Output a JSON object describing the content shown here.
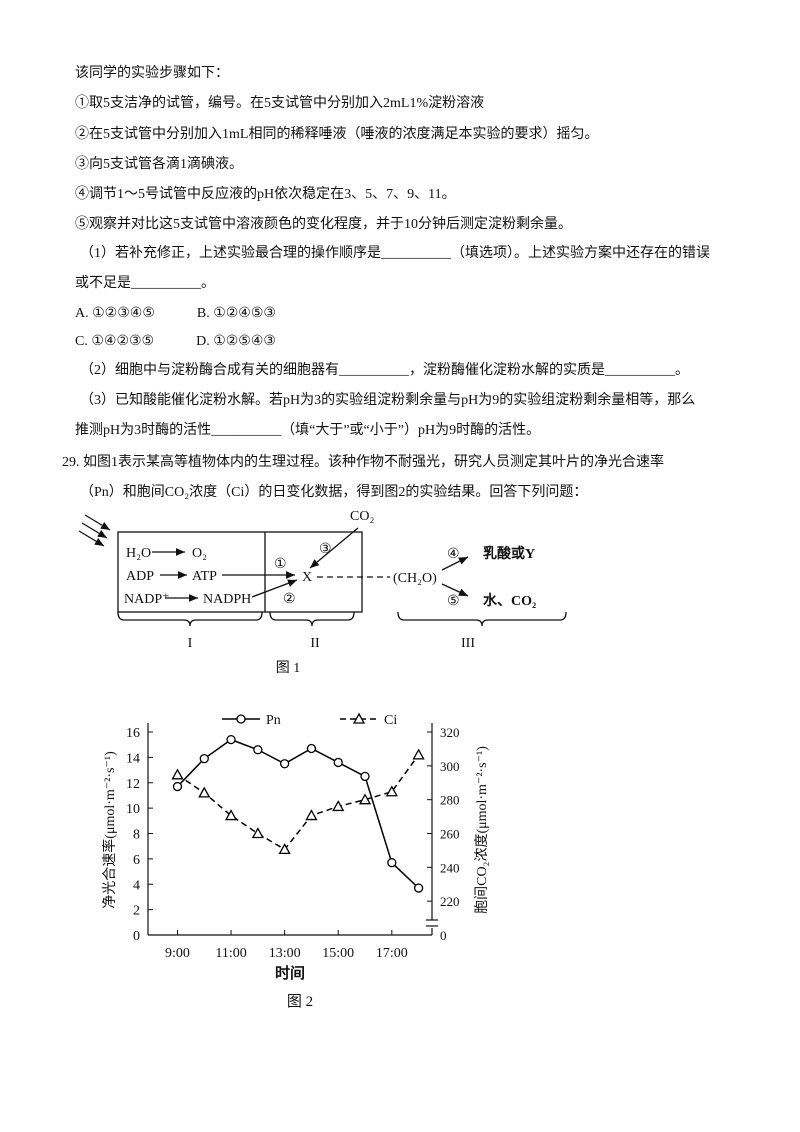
{
  "text_lines": [
    "该同学的实验步骤如下：",
    "①取5支洁净的试管，编号。在5支试管中分别加入2mL1%淀粉溶液",
    "②在5支试管中分别加入1mL相同的稀释唾液（唾液的浓度满足本实验的要求）摇匀。",
    "③向5支试管各滴1滴碘液。",
    "④调节1～5号试管中反应液的pH依次稳定在3、5、7、9、11。",
    "⑤观察并对比这5支试管中溶液颜色的变化程度，并于10分钟后测定淀粉剩余量。",
    "（1）若补充修正，上述实验最合理的操作顺序是__________（填选项）。上述实验方案中还存在的错误",
    "或不足是__________。",
    "A. ①②③④⑤　　　B. ①②④⑤③",
    "C. ①④②③⑤　　　D. ①②⑤④③",
    "（2）细胞中与淀粉酶合成有关的细胞器有__________，淀粉酶催化淀粉水解的实质是__________。",
    "（3）已知酸能催化淀粉水解。若pH为3的实验组淀粉剩余量与pH为9的实验组淀粉剩余量相等，那么",
    "推测pH为3时酶的活性__________（填“大于”或“小于”）pH为9时酶的活性。",
    "29. 如图1表示某高等植物体内的生理过程。该种作物不耐强光，研究人员测定其叶片的净光合速率",
    "（Pn）和胞间CO₂浓度（Ci）的日变化数据，得到图2的实验结果。回答下列问题："
  ],
  "figure1": {
    "h2o": "H₂O",
    "o2": "O₂",
    "adp": "ADP",
    "atp": "ATP",
    "nadp": "NADP⁺",
    "nadph": "NADPH",
    "n1": "①",
    "n2": "②",
    "n3": "③",
    "co2": "CO₂",
    "x": "X",
    "ch2o": "(CH₂O)",
    "n4": "④",
    "lactic": "乳酸或Y",
    "n5": "⑤",
    "water": "水、CO₂",
    "part1": "I",
    "part2": "II",
    "part3": "III",
    "caption": "图 1"
  },
  "figure2": {
    "type": "line",
    "caption": "图 2",
    "x_label": "时间",
    "y_label": "净光合速率(μmol·m⁻²·s⁻¹)",
    "y2_label": "胞间CO₂浓度(μmol·m⁻²·s⁻¹)",
    "x": [
      9,
      10,
      11,
      12,
      13,
      14,
      15,
      16,
      17,
      18
    ],
    "xlim": [
      7.9,
      18.5
    ],
    "xticks": [
      {
        "value": 9,
        "label": "9:00"
      },
      {
        "value": 11,
        "label": "11:00"
      },
      {
        "value": 13,
        "label": "13:00"
      },
      {
        "value": 15,
        "label": "15:00"
      },
      {
        "value": 17,
        "label": "17:00"
      }
    ],
    "ylim": [
      0,
      16
    ],
    "yticks": [
      0,
      2,
      4,
      6,
      8,
      10,
      12,
      14,
      16
    ],
    "y2lim": [
      200,
      320
    ],
    "y2ticks": [
      220,
      240,
      260,
      280,
      300,
      320
    ],
    "y2_break_label": "0",
    "series": [
      {
        "name": "Pn",
        "color": "#000000",
        "marker": "circle",
        "dashed": false,
        "values": [
          11.7,
          13.9,
          15.4,
          14.6,
          13.5,
          14.7,
          13.6,
          12.5,
          5.7,
          3.7
        ]
      },
      {
        "name": "Ci",
        "color": "#000000",
        "marker": "triangle",
        "dashed": true,
        "axis": "y2",
        "values": [
          294.7,
          284,
          270.6,
          260,
          250.6,
          270.6,
          276,
          280,
          284.7,
          306.5
        ]
      }
    ]
  }
}
